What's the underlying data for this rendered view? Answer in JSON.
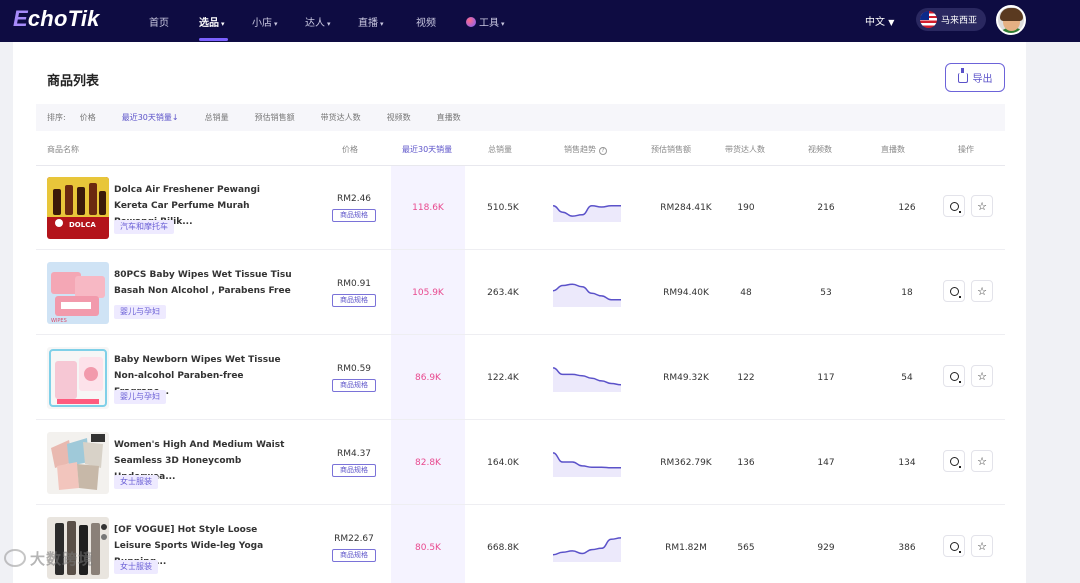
{
  "app": {
    "logo_e": "E",
    "logo_rest": "choTik"
  },
  "nav": {
    "items": [
      {
        "label": "首页"
      },
      {
        "label": "选品"
      },
      {
        "label": "小店"
      },
      {
        "label": "达人"
      },
      {
        "label": "直播"
      },
      {
        "label": "视频"
      },
      {
        "label": "工具"
      }
    ],
    "lang": "中文",
    "region": "马来西亚"
  },
  "page": {
    "title": "商品列表",
    "export_label": "导出"
  },
  "sort": {
    "label": "排序:",
    "options": [
      "价格",
      "最近30天销量↓",
      "总销量",
      "预估销售额",
      "带货达人数",
      "视频数",
      "直播数"
    ]
  },
  "table": {
    "headers": [
      "商品名称",
      "价格",
      "最近30天销量",
      "总销量",
      "销售趋势",
      "预估销售额",
      "带货达人数",
      "视频数",
      "直播数",
      "操作"
    ],
    "spec_label": "商品规格",
    "rows": [
      {
        "name": "Dolca Air Freshener Pewangi Kereta Car Perfume Murah Pewangi Bilik...",
        "category": "汽车和摩托车",
        "price": "RM2.46",
        "sales30": "118.6K",
        "total": "510.5K",
        "trend": [
          0.55,
          0.3,
          0.15,
          0.2,
          0.55,
          0.5,
          0.55,
          0.55
        ],
        "est": "RM284.41K",
        "influencers": "190",
        "videos": "216",
        "lives": "126"
      },
      {
        "name": "80PCS Baby Wipes Wet Tissue Tisu Basah Non Alcohol , Parabens Free ,...",
        "category": "婴儿与孕妇",
        "price": "RM0.91",
        "sales30": "105.9K",
        "total": "263.4K",
        "trend": [
          0.55,
          0.75,
          0.8,
          0.7,
          0.45,
          0.35,
          0.2,
          0.2
        ],
        "est": "RM94.40K",
        "influencers": "48",
        "videos": "53",
        "lives": "18"
      },
      {
        "name": "Baby Newborn Wipes Wet Tissue Non-alcohol Paraben-free Fragranc...",
        "category": "婴儿与孕妇",
        "price": "RM0.59",
        "sales30": "86.9K",
        "total": "122.4K",
        "trend": [
          0.85,
          0.6,
          0.6,
          0.55,
          0.45,
          0.35,
          0.25,
          0.2
        ],
        "est": "RM49.32K",
        "influencers": "122",
        "videos": "117",
        "lives": "54"
      },
      {
        "name": "Women's High And Medium Waist Seamless 3D Honeycomb Underwea...",
        "category": "女士服装",
        "price": "RM4.37",
        "sales30": "82.8K",
        "total": "164.0K",
        "trend": [
          0.85,
          0.5,
          0.5,
          0.35,
          0.3,
          0.3,
          0.28,
          0.28
        ],
        "est": "RM362.79K",
        "influencers": "136",
        "videos": "147",
        "lives": "134"
      },
      {
        "name": "[OF VOGUE] Hot Style Loose Leisure Sports Wide-leg Yoga Running...",
        "category": "女士服装",
        "price": "RM22.67",
        "sales30": "80.5K",
        "total": "668.8K",
        "trend": [
          0.2,
          0.3,
          0.35,
          0.25,
          0.4,
          0.45,
          0.8,
          0.85
        ],
        "est": "RM1.82M",
        "influencers": "565",
        "videos": "929",
        "lives": "386"
      }
    ]
  },
  "watermark": "大数跨境",
  "colors": {
    "nav_bg": "#0e0c42",
    "accent": "#5b52c9",
    "highlight": "#e84a8f"
  }
}
